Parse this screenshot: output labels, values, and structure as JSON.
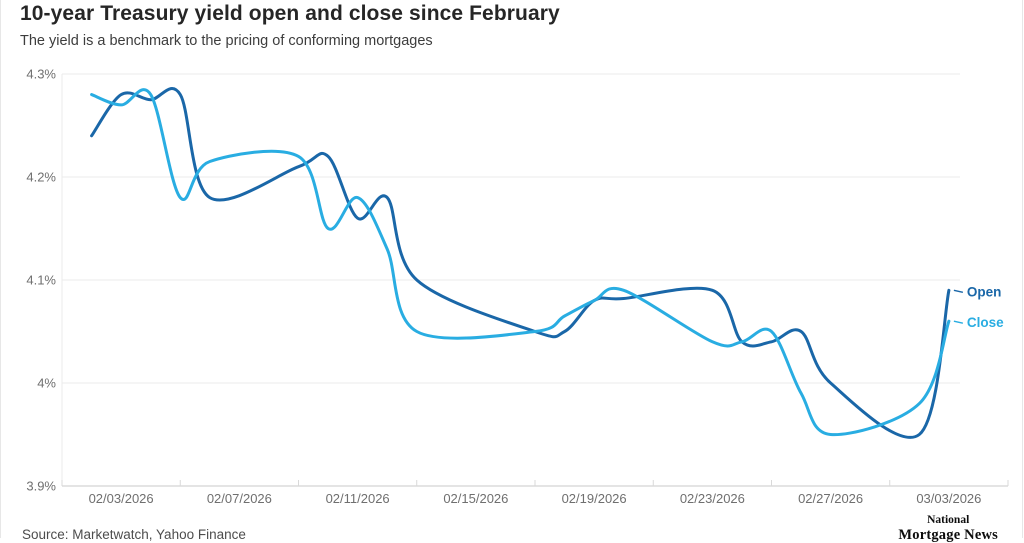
{
  "header": {
    "title": "10-year Treasury yield open and close since February",
    "subtitle": "The yield is a benchmark to the pricing of conforming mortgages"
  },
  "footer": {
    "source": "Source: Marketwatch, Yahoo Finance",
    "logo_line1": "National",
    "logo_line2": "Mortgage News"
  },
  "colors": {
    "open_line": "#1a67a8",
    "close_line": "#29ade2",
    "grid": "#ebebeb",
    "axis": "#c9c9c9",
    "tick": "#d9d9d9",
    "label": "#6f6f6f"
  },
  "chart_data": {
    "type": "line",
    "title": "10-year Treasury yield open and close since February",
    "subtitle": "The yield is a benchmark to the pricing of conforming mortgages",
    "xlabel": "",
    "ylabel": "",
    "grid": true,
    "legend_position": "right-end-labels",
    "y_axis": {
      "min": 3.9,
      "max": 4.3,
      "tick_values": [
        4.3,
        4.2,
        4.1,
        4.0,
        3.9
      ],
      "tick_labels": [
        "4.3%",
        "4.2%",
        "4.1%",
        "4%",
        "3.9%"
      ]
    },
    "x_axis": {
      "range_start": "02/01/2026",
      "range_end": "03/05/2026",
      "tick_boundary_dates": [
        "02/01",
        "02/05",
        "02/09",
        "02/13",
        "02/17",
        "02/21",
        "02/25",
        "03/01",
        "03/05"
      ],
      "labels": [
        {
          "date": "02/03",
          "text": "02/03/2026"
        },
        {
          "date": "02/07",
          "text": "02/07/2026"
        },
        {
          "date": "02/11",
          "text": "02/11/2026"
        },
        {
          "date": "02/15",
          "text": "02/15/2026"
        },
        {
          "date": "02/19",
          "text": "02/19/2026"
        },
        {
          "date": "02/23",
          "text": "02/23/2026"
        },
        {
          "date": "02/27",
          "text": "02/27/2026"
        },
        {
          "date": "03/03",
          "text": "03/03/2026"
        }
      ]
    },
    "series": [
      {
        "name": "Open",
        "color": "#1a67a8",
        "dates": [
          "02/02",
          "02/03",
          "02/04",
          "02/05",
          "02/06",
          "02/09",
          "02/10",
          "02/11",
          "02/12",
          "02/13",
          "02/17",
          "02/18",
          "02/19",
          "02/20",
          "02/23",
          "02/24",
          "02/25",
          "02/26",
          "02/27",
          "03/02",
          "03/03"
        ],
        "values": [
          4.24,
          4.28,
          4.275,
          4.28,
          4.18,
          4.21,
          4.22,
          4.16,
          4.18,
          4.1,
          4.05,
          4.05,
          4.08,
          4.082,
          4.09,
          4.04,
          4.04,
          4.05,
          4.0,
          3.95,
          4.09
        ]
      },
      {
        "name": "Close",
        "color": "#29ade2",
        "dates": [
          "02/02",
          "02/03",
          "02/04",
          "02/05",
          "02/06",
          "02/09",
          "02/10",
          "02/11",
          "02/12",
          "02/13",
          "02/17",
          "02/18",
          "02/19",
          "02/20",
          "02/23",
          "02/24",
          "02/25",
          "02/26",
          "02/27",
          "03/02",
          "03/03"
        ],
        "values": [
          4.28,
          4.27,
          4.28,
          4.18,
          4.215,
          4.22,
          4.15,
          4.18,
          4.13,
          4.05,
          4.05,
          4.065,
          4.08,
          4.09,
          4.04,
          4.04,
          4.05,
          3.99,
          3.95,
          3.98,
          4.06
        ]
      }
    ]
  }
}
